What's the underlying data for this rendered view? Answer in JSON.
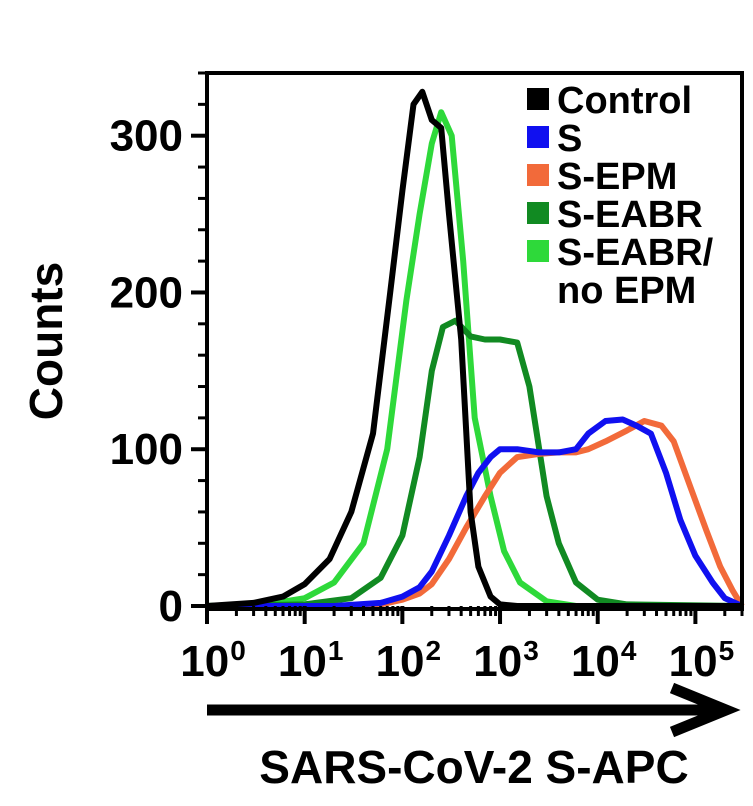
{
  "chart_data": {
    "type": "line",
    "title": "",
    "xlabel": "SARS-CoV-2 S-APC",
    "ylabel": "Counts",
    "xscale": "log",
    "xlim": [
      1,
      300000
    ],
    "ylim": [
      0,
      340
    ],
    "x_ticks": [
      1,
      10,
      100,
      1000,
      10000,
      100000
    ],
    "x_tick_labels": [
      {
        "base": "10",
        "exp": "0"
      },
      {
        "base": "10",
        "exp": "1"
      },
      {
        "base": "10",
        "exp": "2"
      },
      {
        "base": "10",
        "exp": "3"
      },
      {
        "base": "10",
        "exp": "4"
      },
      {
        "base": "10",
        "exp": "5"
      }
    ],
    "y_ticks": [
      0,
      100,
      200,
      300
    ],
    "y_tick_labels": [
      "0",
      "100",
      "200",
      "300"
    ],
    "grid": false,
    "legend_position": "top-right",
    "legend": {
      "entries": [
        {
          "lines": [
            "Control"
          ],
          "color": "#000000"
        },
        {
          "lines": [
            "S"
          ],
          "color": "#1010f0"
        },
        {
          "lines": [
            "S-EPM"
          ],
          "color": "#f26a3a"
        },
        {
          "lines": [
            "S-EABR"
          ],
          "color": "#118a22"
        },
        {
          "lines": [
            "S-EABR/",
            "no EPM"
          ],
          "color": "#2ed93a"
        }
      ]
    },
    "series": [
      {
        "name": "Control",
        "color": "#000000",
        "points": [
          [
            1,
            0
          ],
          [
            3,
            2
          ],
          [
            6,
            6
          ],
          [
            10,
            14
          ],
          [
            18,
            30
          ],
          [
            30,
            60
          ],
          [
            50,
            110
          ],
          [
            75,
            200
          ],
          [
            100,
            265
          ],
          [
            130,
            320
          ],
          [
            160,
            328
          ],
          [
            200,
            310
          ],
          [
            250,
            305
          ],
          [
            300,
            250
          ],
          [
            400,
            170
          ],
          [
            500,
            60
          ],
          [
            600,
            25
          ],
          [
            800,
            6
          ],
          [
            1000,
            1
          ],
          [
            1500,
            0
          ],
          [
            300000,
            0
          ]
        ]
      },
      {
        "name": "S",
        "color": "#1010f0",
        "points": [
          [
            1,
            0
          ],
          [
            20,
            0
          ],
          [
            60,
            2
          ],
          [
            100,
            6
          ],
          [
            150,
            12
          ],
          [
            200,
            22
          ],
          [
            300,
            45
          ],
          [
            450,
            70
          ],
          [
            600,
            85
          ],
          [
            800,
            95
          ],
          [
            1000,
            100
          ],
          [
            1500,
            100
          ],
          [
            2500,
            98
          ],
          [
            4000,
            98
          ],
          [
            6000,
            100
          ],
          [
            8000,
            110
          ],
          [
            12000,
            118
          ],
          [
            18000,
            119
          ],
          [
            25000,
            115
          ],
          [
            35000,
            110
          ],
          [
            50000,
            85
          ],
          [
            70000,
            55
          ],
          [
            100000,
            32
          ],
          [
            150000,
            15
          ],
          [
            200000,
            5
          ],
          [
            300000,
            0
          ]
        ]
      },
      {
        "name": "S-EPM",
        "color": "#f26a3a",
        "points": [
          [
            1,
            0
          ],
          [
            20,
            0
          ],
          [
            60,
            1
          ],
          [
            100,
            4
          ],
          [
            150,
            8
          ],
          [
            200,
            14
          ],
          [
            300,
            30
          ],
          [
            450,
            50
          ],
          [
            700,
            70
          ],
          [
            1000,
            85
          ],
          [
            1500,
            95
          ],
          [
            2500,
            97
          ],
          [
            4000,
            98
          ],
          [
            6000,
            98
          ],
          [
            8000,
            100
          ],
          [
            12000,
            105
          ],
          [
            20000,
            112
          ],
          [
            30000,
            118
          ],
          [
            45000,
            115
          ],
          [
            60000,
            105
          ],
          [
            90000,
            75
          ],
          [
            130000,
            48
          ],
          [
            180000,
            25
          ],
          [
            240000,
            10
          ],
          [
            300000,
            0
          ]
        ]
      },
      {
        "name": "S-EABR",
        "color": "#118a22",
        "points": [
          [
            1,
            0
          ],
          [
            10,
            1
          ],
          [
            30,
            5
          ],
          [
            60,
            18
          ],
          [
            100,
            45
          ],
          [
            150,
            95
          ],
          [
            200,
            150
          ],
          [
            260,
            178
          ],
          [
            350,
            182
          ],
          [
            500,
            172
          ],
          [
            700,
            170
          ],
          [
            1000,
            170
          ],
          [
            1500,
            168
          ],
          [
            2000,
            140
          ],
          [
            3000,
            70
          ],
          [
            4000,
            40
          ],
          [
            6000,
            15
          ],
          [
            10000,
            4
          ],
          [
            20000,
            1
          ],
          [
            300000,
            0
          ]
        ]
      },
      {
        "name": "S-EABR/no EPM",
        "color": "#2ed93a",
        "points": [
          [
            1,
            0
          ],
          [
            5,
            2
          ],
          [
            10,
            5
          ],
          [
            20,
            15
          ],
          [
            40,
            40
          ],
          [
            70,
            100
          ],
          [
            110,
            195
          ],
          [
            150,
            250
          ],
          [
            200,
            295
          ],
          [
            250,
            315
          ],
          [
            320,
            300
          ],
          [
            420,
            220
          ],
          [
            550,
            120
          ],
          [
            800,
            70
          ],
          [
            1100,
            35
          ],
          [
            1600,
            15
          ],
          [
            3000,
            3
          ],
          [
            6000,
            0
          ],
          [
            300000,
            0
          ]
        ]
      }
    ]
  }
}
